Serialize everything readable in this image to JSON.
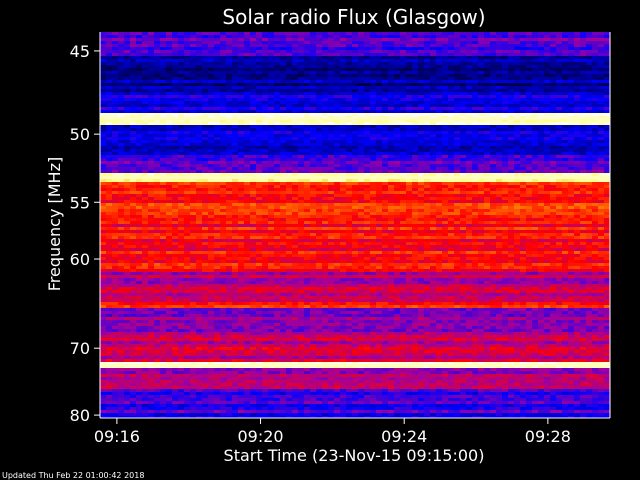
{
  "chart_data": {
    "type": "heatmap",
    "title": "Solar radio Flux (Glasgow)",
    "xlabel": "Start Time (23-Nov-15 09:15:00)",
    "ylabel": "Frequency [MHz]",
    "x_ticks": [
      "09:16",
      "09:20",
      "09:24",
      "09:28"
    ],
    "x_tick_minutes": [
      1,
      5,
      9,
      13
    ],
    "x_range_minutes": [
      0.53,
      14.73
    ],
    "y_ticks": [
      45,
      50,
      55,
      60,
      70,
      80
    ],
    "y_range_mhz": [
      44,
      80.5
    ],
    "y_scale": "reciprocal",
    "colormap": [
      "#000000",
      "#00007a",
      "#0000ff",
      "#a000a0",
      "#ff0000",
      "#ff8000",
      "#ffff80",
      "#ffffff"
    ],
    "bands": [
      {
        "from": 44.0,
        "to": 45.3,
        "level": 0.35
      },
      {
        "from": 45.3,
        "to": 47.5,
        "level": 0.18
      },
      {
        "from": 47.5,
        "to": 48.7,
        "level": 0.26
      },
      {
        "from": 48.7,
        "to": 49.4,
        "level": 0.95
      },
      {
        "from": 49.4,
        "to": 51.4,
        "level": 0.24
      },
      {
        "from": 51.4,
        "to": 52.8,
        "level": 0.34
      },
      {
        "from": 52.8,
        "to": 53.3,
        "level": 0.88
      },
      {
        "from": 53.3,
        "to": 56.3,
        "level": 0.62
      },
      {
        "from": 56.3,
        "to": 61.4,
        "level": 0.58
      },
      {
        "from": 61.4,
        "to": 64.5,
        "level": 0.47
      },
      {
        "from": 64.5,
        "to": 65.1,
        "level": 0.62
      },
      {
        "from": 65.1,
        "to": 67.8,
        "level": 0.4
      },
      {
        "from": 67.8,
        "to": 72.0,
        "level": 0.49
      },
      {
        "from": 72.0,
        "to": 72.6,
        "level": 0.96
      },
      {
        "from": 72.6,
        "to": 76.0,
        "level": 0.45
      },
      {
        "from": 76.0,
        "to": 80.5,
        "level": 0.33
      }
    ]
  },
  "footer": {
    "updated": "Updated Thu Feb 22 01:00:42 2018"
  }
}
